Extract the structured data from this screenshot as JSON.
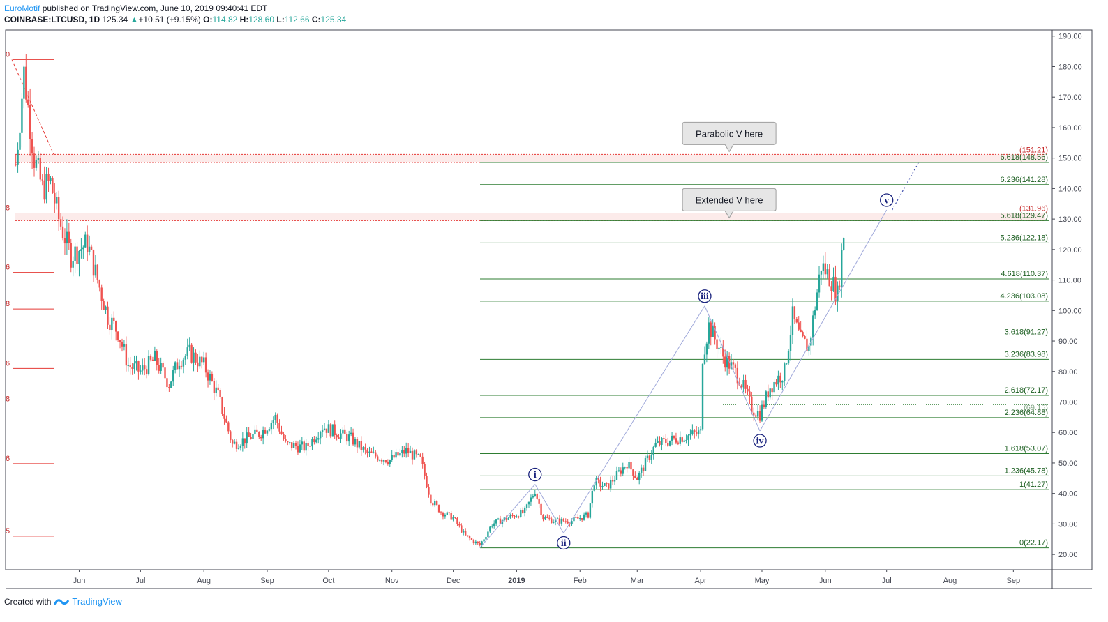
{
  "header": {
    "author": "EuroMotif",
    "published": " published on TradingView.com, June 10, 2019 09:40:41 EDT",
    "symbol": "COINBASE:LTCUSD, 1D",
    "last": "125.34",
    "change": "+10.51 (+9.15%)",
    "o_label": "O:",
    "o": "114.82",
    "h_label": "H:",
    "h": "128.60",
    "l_label": "L:",
    "l": "112.66",
    "c_label": "C:",
    "c": "125.34"
  },
  "footer": {
    "created": "Created with",
    "brand": "TradingView"
  },
  "colors": {
    "up": "#26a69a",
    "down": "#ef5350",
    "fib": "#2e7d32",
    "fib_red": "#e53935",
    "wave": "#1a237e",
    "wave_line": "#9fa8da"
  },
  "chart_data": {
    "type": "candlestick",
    "y_range": [
      15,
      192
    ],
    "y_ticks": [
      "190.00",
      "180.00",
      "170.00",
      "160.00",
      "150.00",
      "140.00",
      "130.00",
      "120.00",
      "110.00",
      "100.00",
      "90.00",
      "80.00",
      "70.00",
      "60.00",
      "50.00",
      "40.00",
      "30.00",
      "20.00"
    ],
    "x_labels": [
      {
        "label": "Jun",
        "date": "2018-06-01"
      },
      {
        "label": "Jul",
        "date": "2018-07-01"
      },
      {
        "label": "Aug",
        "date": "2018-08-01"
      },
      {
        "label": "Sep",
        "date": "2018-09-01"
      },
      {
        "label": "Oct",
        "date": "2018-10-01"
      },
      {
        "label": "Nov",
        "date": "2018-11-01"
      },
      {
        "label": "Dec",
        "date": "2018-12-01"
      },
      {
        "label": "2019",
        "date": "2019-01-01"
      },
      {
        "label": "Feb",
        "date": "2019-02-01"
      },
      {
        "label": "Mar",
        "date": "2019-03-01"
      },
      {
        "label": "Apr",
        "date": "2019-04-01"
      },
      {
        "label": "May",
        "date": "2019-05-01"
      },
      {
        "label": "Jun",
        "date": "2019-06-01"
      },
      {
        "label": "Jul",
        "date": "2019-07-01"
      },
      {
        "label": "Aug",
        "date": "2019-08-01"
      },
      {
        "label": "Sep",
        "date": "2019-09-01"
      }
    ],
    "price_path": [
      [
        "2018-05-01",
        148
      ],
      [
        "2018-05-05",
        178
      ],
      [
        "2018-05-10",
        150
      ],
      [
        "2018-05-14",
        140
      ],
      [
        "2018-05-18",
        142
      ],
      [
        "2018-05-22",
        130
      ],
      [
        "2018-05-28",
        118
      ],
      [
        "2018-06-05",
        122
      ],
      [
        "2018-06-10",
        110
      ],
      [
        "2018-06-15",
        98
      ],
      [
        "2018-06-20",
        93
      ],
      [
        "2018-06-25",
        82
      ],
      [
        "2018-07-01",
        80
      ],
      [
        "2018-07-08",
        84
      ],
      [
        "2018-07-15",
        76
      ],
      [
        "2018-07-20",
        84
      ],
      [
        "2018-07-25",
        86
      ],
      [
        "2018-08-01",
        82
      ],
      [
        "2018-08-08",
        72
      ],
      [
        "2018-08-15",
        56
      ],
      [
        "2018-08-22",
        58
      ],
      [
        "2018-08-29",
        60
      ],
      [
        "2018-09-05",
        65
      ],
      [
        "2018-09-10",
        56
      ],
      [
        "2018-09-20",
        55
      ],
      [
        "2018-09-28",
        62
      ],
      [
        "2018-10-05",
        60
      ],
      [
        "2018-10-12",
        58
      ],
      [
        "2018-10-20",
        53
      ],
      [
        "2018-10-31",
        51
      ],
      [
        "2018-11-08",
        54
      ],
      [
        "2018-11-15",
        51
      ],
      [
        "2018-11-20",
        38
      ],
      [
        "2018-11-25",
        34
      ],
      [
        "2018-12-01",
        32
      ],
      [
        "2018-12-07",
        26
      ],
      [
        "2018-12-14",
        23
      ],
      [
        "2018-12-20",
        30
      ],
      [
        "2018-12-28",
        32
      ],
      [
        "2019-01-05",
        34
      ],
      [
        "2019-01-10",
        41
      ],
      [
        "2019-01-14",
        32
      ],
      [
        "2019-01-20",
        31
      ],
      [
        "2019-01-28",
        31
      ],
      [
        "2019-02-05",
        33
      ],
      [
        "2019-02-08",
        44
      ],
      [
        "2019-02-14",
        42
      ],
      [
        "2019-02-24",
        50
      ],
      [
        "2019-03-01",
        45
      ],
      [
        "2019-03-10",
        56
      ],
      [
        "2019-03-20",
        58
      ],
      [
        "2019-04-01",
        60
      ],
      [
        "2019-04-02",
        85
      ],
      [
        "2019-04-05",
        95
      ],
      [
        "2019-04-12",
        85
      ],
      [
        "2019-04-20",
        78
      ],
      [
        "2019-04-26",
        68
      ],
      [
        "2019-04-30",
        66
      ],
      [
        "2019-05-05",
        75
      ],
      [
        "2019-05-12",
        80
      ],
      [
        "2019-05-16",
        98
      ],
      [
        "2019-05-20",
        90
      ],
      [
        "2019-05-24",
        88
      ],
      [
        "2019-05-30",
        115
      ],
      [
        "2019-06-04",
        110
      ],
      [
        "2019-06-07",
        105
      ],
      [
        "2019-06-10",
        125.34
      ]
    ],
    "fib_levels": [
      {
        "label": "0(22.17)",
        "value": 22.17
      },
      {
        "label": "1(41.27)",
        "value": 41.27
      },
      {
        "label": "1.236(45.78)",
        "value": 45.78
      },
      {
        "label": "1.618(53.07)",
        "value": 53.07
      },
      {
        "label": "2.236(64.88)",
        "value": 64.88
      },
      {
        "label": "2.618(72.17)",
        "value": 72.17
      },
      {
        "label": "3.236(83.98)",
        "value": 83.98
      },
      {
        "label": "3.618(91.27)",
        "value": 91.27
      },
      {
        "label": "4.236(103.08)",
        "value": 103.08
      },
      {
        "label": "4.618(110.37)",
        "value": 110.37
      },
      {
        "label": "5.236(122.18)",
        "value": 122.18
      },
      {
        "label": "5.618(129.47)",
        "value": 129.47
      },
      {
        "label": "6.236(141.28)",
        "value": 141.28
      },
      {
        "label": "6.618(148.56)",
        "value": 148.56
      }
    ],
    "red_levels": [
      {
        "label": "(151.21)",
        "value": 151.21
      },
      {
        "label": "(131.96)",
        "value": 131.96
      }
    ],
    "hidden_label": {
      "label": "(69.15)",
      "value": 69.15
    },
    "left_fib_labels": [
      {
        "label": "0",
        "value": 182.3
      },
      {
        "label": "8",
        "value": 131.96
      },
      {
        "label": "6",
        "value": 112.5
      },
      {
        "label": "8",
        "value": 100.5
      },
      {
        "label": "6",
        "value": 81
      },
      {
        "label": "8",
        "value": 69.3
      },
      {
        "label": "6",
        "value": 49.8
      },
      {
        "label": "5",
        "value": 26
      }
    ],
    "waves": [
      {
        "label": "i",
        "date": "2019-01-10",
        "value": 43.0
      },
      {
        "label": "ii",
        "date": "2019-01-24",
        "value": 27.0
      },
      {
        "label": "iii",
        "date": "2019-04-03",
        "value": 101.5
      },
      {
        "label": "iv",
        "date": "2019-04-30",
        "value": 60.5
      },
      {
        "label": "v",
        "date": "2019-07-01",
        "value": 133.0
      }
    ],
    "callouts": [
      {
        "text": "Parabolic V here",
        "date": "2019-04-15",
        "value": 151.21
      },
      {
        "text": "Extended V here",
        "date": "2019-04-15",
        "value": 129.47
      }
    ]
  }
}
